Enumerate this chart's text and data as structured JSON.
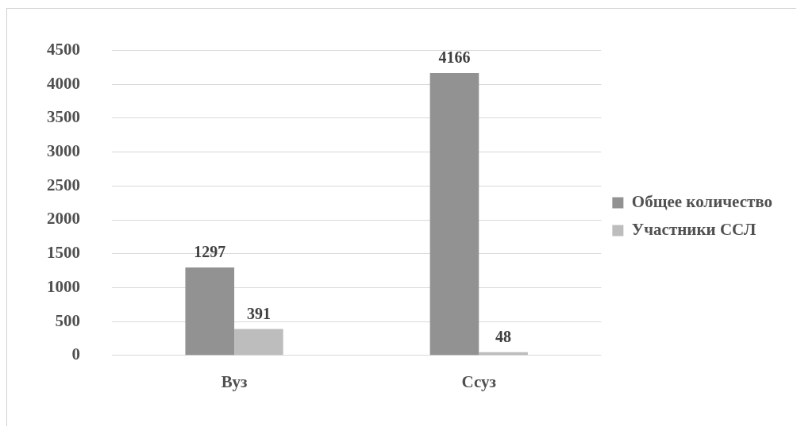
{
  "chart_data": {
    "type": "bar",
    "categories": [
      "Вуз",
      "Ссуз"
    ],
    "series": [
      {
        "name": "Общее количество",
        "color": "#929292",
        "values": [
          1297,
          4166
        ]
      },
      {
        "name": "Участники ССЛ",
        "color": "#bdbdbd",
        "values": [
          391,
          48
        ]
      }
    ],
    "ylim": [
      0,
      4500
    ],
    "yticks": [
      0,
      500,
      1000,
      1500,
      2000,
      2500,
      3000,
      3500,
      4000,
      4500
    ],
    "grid": "y",
    "legend": "right",
    "data_labels": true
  }
}
